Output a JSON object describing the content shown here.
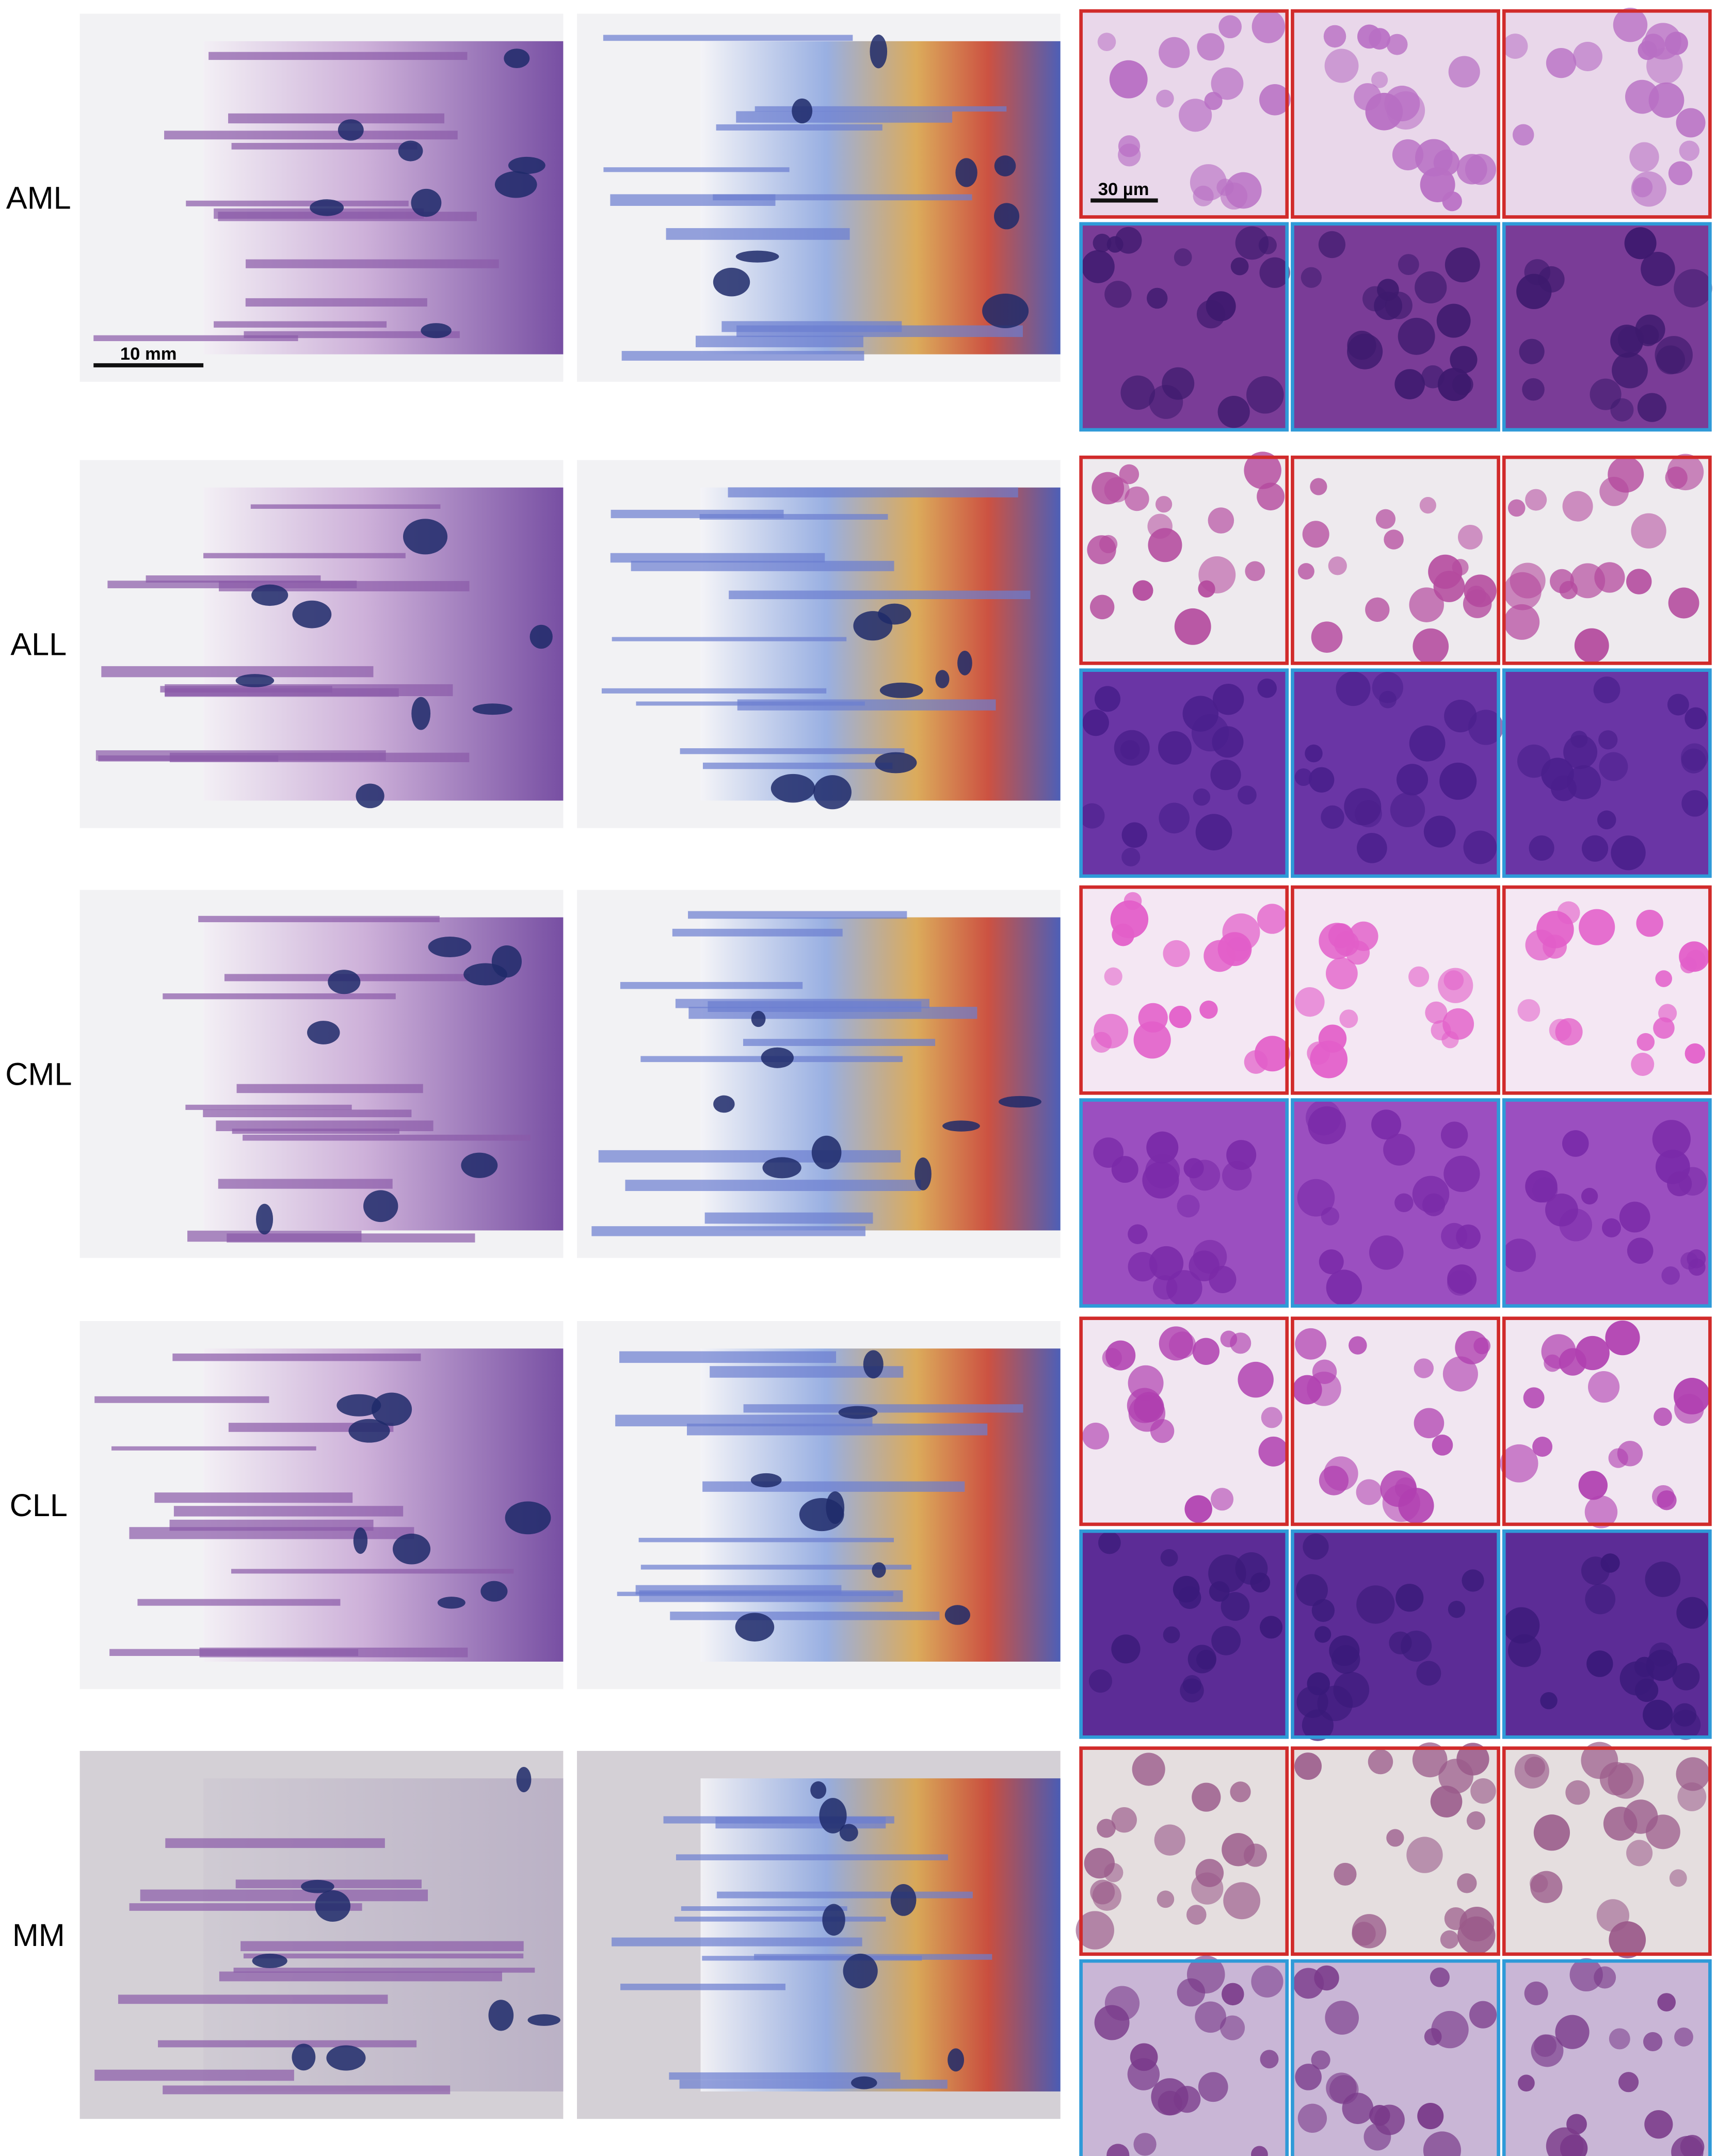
{
  "rows": [
    {
      "label": "AML"
    },
    {
      "label": "ALL"
    },
    {
      "label": "CML"
    },
    {
      "label": "CLL"
    },
    {
      "label": "MM"
    }
  ],
  "scale_bars": {
    "slide": "10 mm",
    "tile": "30 µm"
  }
}
